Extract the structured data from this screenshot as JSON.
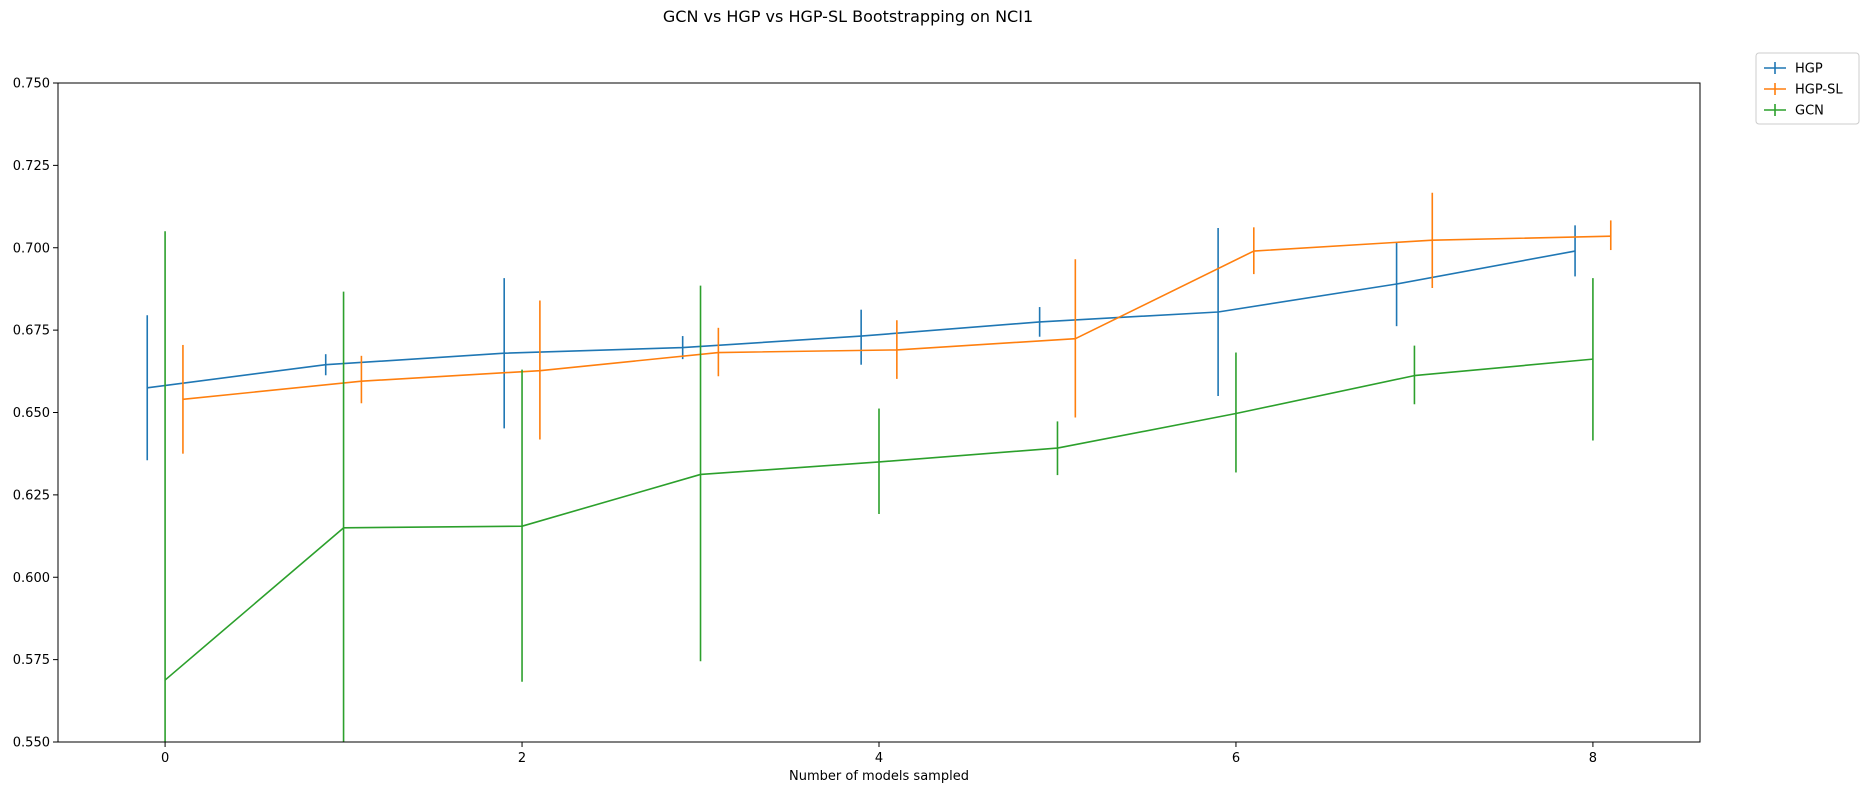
{
  "chart_data": {
    "type": "line",
    "title": "GCN vs HGP vs HGP-SL Bootstrapping on NCI1",
    "xlabel": "Number of models sampled",
    "ylabel": "",
    "xlim": [
      -0.6,
      8.6
    ],
    "ylim": [
      0.55,
      0.75
    ],
    "xticks": [
      0,
      2,
      4,
      6,
      8
    ],
    "xtick_labels": [
      "0",
      "2",
      "4",
      "6",
      "8"
    ],
    "yticks": [
      0.55,
      0.575,
      0.6,
      0.625,
      0.65,
      0.675,
      0.7,
      0.725,
      0.75
    ],
    "ytick_labels": [
      "0.550",
      "0.575",
      "0.600",
      "0.625",
      "0.650",
      "0.675",
      "0.700",
      "0.725",
      "0.750"
    ],
    "grid": false,
    "legend": {
      "placement": "outside-top-right",
      "entries": [
        "HGP",
        "HGP-SL",
        "GCN"
      ]
    },
    "series": [
      {
        "name": "HGP",
        "color": "#1f77b4",
        "x": [
          -0.1,
          0.9,
          1.9,
          2.9,
          3.9,
          4.9,
          5.9,
          6.9,
          7.9
        ],
        "y": [
          0.6575,
          0.6645,
          0.668,
          0.6697,
          0.6732,
          0.6775,
          0.6805,
          0.689,
          0.699
        ],
        "err_low": [
          0.6355,
          0.6613,
          0.6452,
          0.6662,
          0.6645,
          0.673,
          0.655,
          0.6762,
          0.6913
        ],
        "err_high": [
          0.6795,
          0.6677,
          0.6908,
          0.6732,
          0.6812,
          0.682,
          0.706,
          0.7018,
          0.7068
        ]
      },
      {
        "name": "HGP-SL",
        "color": "#ff7f0e",
        "x": [
          0.1,
          1.1,
          2.1,
          3.1,
          4.1,
          5.1,
          6.1,
          7.1,
          8.1
        ],
        "y": [
          0.654,
          0.6595,
          0.6627,
          0.6682,
          0.669,
          0.6724,
          0.699,
          0.7023,
          0.7035
        ],
        "err_low": [
          0.6375,
          0.6528,
          0.6418,
          0.661,
          0.6602,
          0.6485,
          0.692,
          0.6878,
          0.6993
        ],
        "err_high": [
          0.6705,
          0.6672,
          0.684,
          0.6757,
          0.678,
          0.6965,
          0.7062,
          0.7167,
          0.7083
        ]
      },
      {
        "name": "GCN",
        "color": "#2ca02c",
        "x": [
          0,
          1,
          2,
          3,
          4,
          5,
          6,
          7,
          8
        ],
        "y": [
          0.5688,
          0.615,
          0.6155,
          0.6312,
          0.635,
          0.6392,
          0.6497,
          0.6612,
          0.6662
        ],
        "err_low": [
          0.5325,
          0.5435,
          0.5683,
          0.5745,
          0.6192,
          0.631,
          0.6318,
          0.6525,
          0.6415
        ],
        "err_high": [
          0.705,
          0.6867,
          0.663,
          0.6885,
          0.6512,
          0.6473,
          0.6682,
          0.6703,
          0.6908
        ]
      }
    ]
  }
}
